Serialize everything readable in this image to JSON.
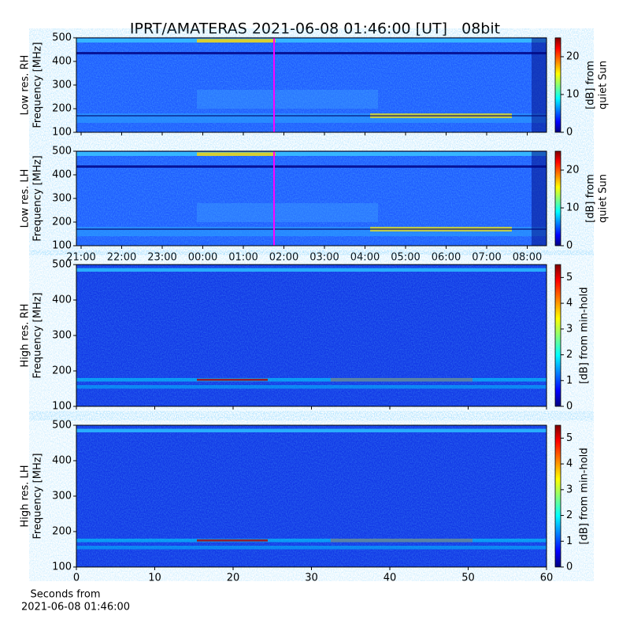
{
  "chart_data": [
    {
      "type": "spectrogram",
      "title": "IPRT/AMATERAS 2021-06-08 01:46:00 [UT]   08bit",
      "colormap": "jet",
      "ylabel": [
        "Low res. RH",
        "Frequency [MHz]"
      ],
      "ylim": [
        100,
        500
      ],
      "yticks": [
        100,
        200,
        300,
        400,
        500
      ],
      "colorbar": {
        "label": [
          "[dB] from",
          "quiet Sun"
        ],
        "lim": [
          0,
          25
        ],
        "ticks": [
          0,
          10,
          20
        ]
      }
    },
    {
      "type": "spectrogram",
      "colormap": "jet",
      "ylabel": [
        "Low res. LH",
        "Frequency [MHz]"
      ],
      "ylim": [
        100,
        500
      ],
      "yticks": [
        100,
        200,
        300,
        400,
        500
      ],
      "xtick_labels": [
        "21:00",
        "22:00",
        "23:00",
        "00:00",
        "01:00",
        "02:00",
        "03:00",
        "04:00",
        "05:00",
        "06:00",
        "07:00",
        "08:00"
      ],
      "colorbar": {
        "label": [
          "[dB] from",
          "quiet Sun"
        ],
        "lim": [
          0,
          25
        ],
        "ticks": [
          0,
          10,
          20
        ]
      }
    },
    {
      "type": "spectrogram",
      "colormap": "jet",
      "ylabel": [
        "High res. RH",
        "Frequency [MHz]"
      ],
      "ylim": [
        100,
        500
      ],
      "yticks": [
        100,
        200,
        300,
        400,
        500
      ],
      "xlim": [
        0,
        60
      ],
      "xticks": [
        0,
        10,
        20,
        30,
        40,
        50,
        60
      ],
      "colorbar": {
        "label": [
          "[dB] from min-hold"
        ],
        "lim": [
          0,
          5.5
        ],
        "ticks": [
          0,
          1,
          2,
          3,
          4,
          5
        ]
      }
    },
    {
      "type": "spectrogram",
      "colormap": "jet",
      "ylabel": [
        "High res. LH",
        "Frequency [MHz]"
      ],
      "ylim": [
        100,
        500
      ],
      "yticks": [
        100,
        200,
        300,
        400,
        500
      ],
      "xlim": [
        0,
        60
      ],
      "xticks": [
        0,
        10,
        20,
        30,
        40,
        50,
        60
      ],
      "xlabel": [
        "Seconds from",
        "2021-06-08 01:46:00"
      ],
      "colorbar": {
        "label": [
          "[dB] from min-hold"
        ],
        "lim": [
          0,
          5.5
        ],
        "ticks": [
          0,
          1,
          2,
          3,
          4,
          5
        ]
      }
    }
  ]
}
